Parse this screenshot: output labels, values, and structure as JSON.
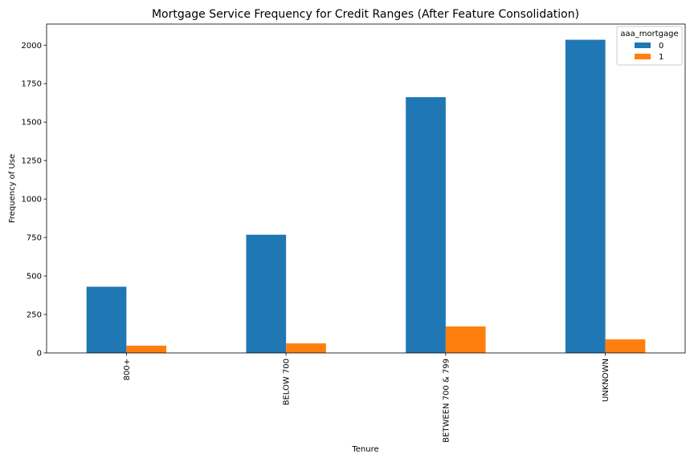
{
  "chart_data": {
    "type": "bar",
    "title": "Mortgage Service Frequency for Credit Ranges (After Feature Consolidation)",
    "xlabel": "Tenure",
    "ylabel": "Frequency of Use",
    "categories": [
      "800+",
      "BELOW 700",
      "BETWEEN 700 & 799",
      "UNKNOWN"
    ],
    "series": [
      {
        "name": "0",
        "values": [
          430,
          768,
          1662,
          2035
        ],
        "color": "#1f77b4"
      },
      {
        "name": "1",
        "values": [
          47,
          62,
          172,
          88
        ],
        "color": "#ff7f0e"
      }
    ],
    "ylim": [
      0,
      2137
    ],
    "yticks": [
      0,
      250,
      500,
      750,
      1000,
      1250,
      1500,
      1750,
      2000
    ],
    "yticklabels": [
      "0",
      "250",
      "500",
      "750",
      "1000",
      "1250",
      "1500",
      "1750",
      "2000"
    ],
    "legend": {
      "title": "aaa_mortgage",
      "placement": "top-right"
    },
    "grid": false
  }
}
